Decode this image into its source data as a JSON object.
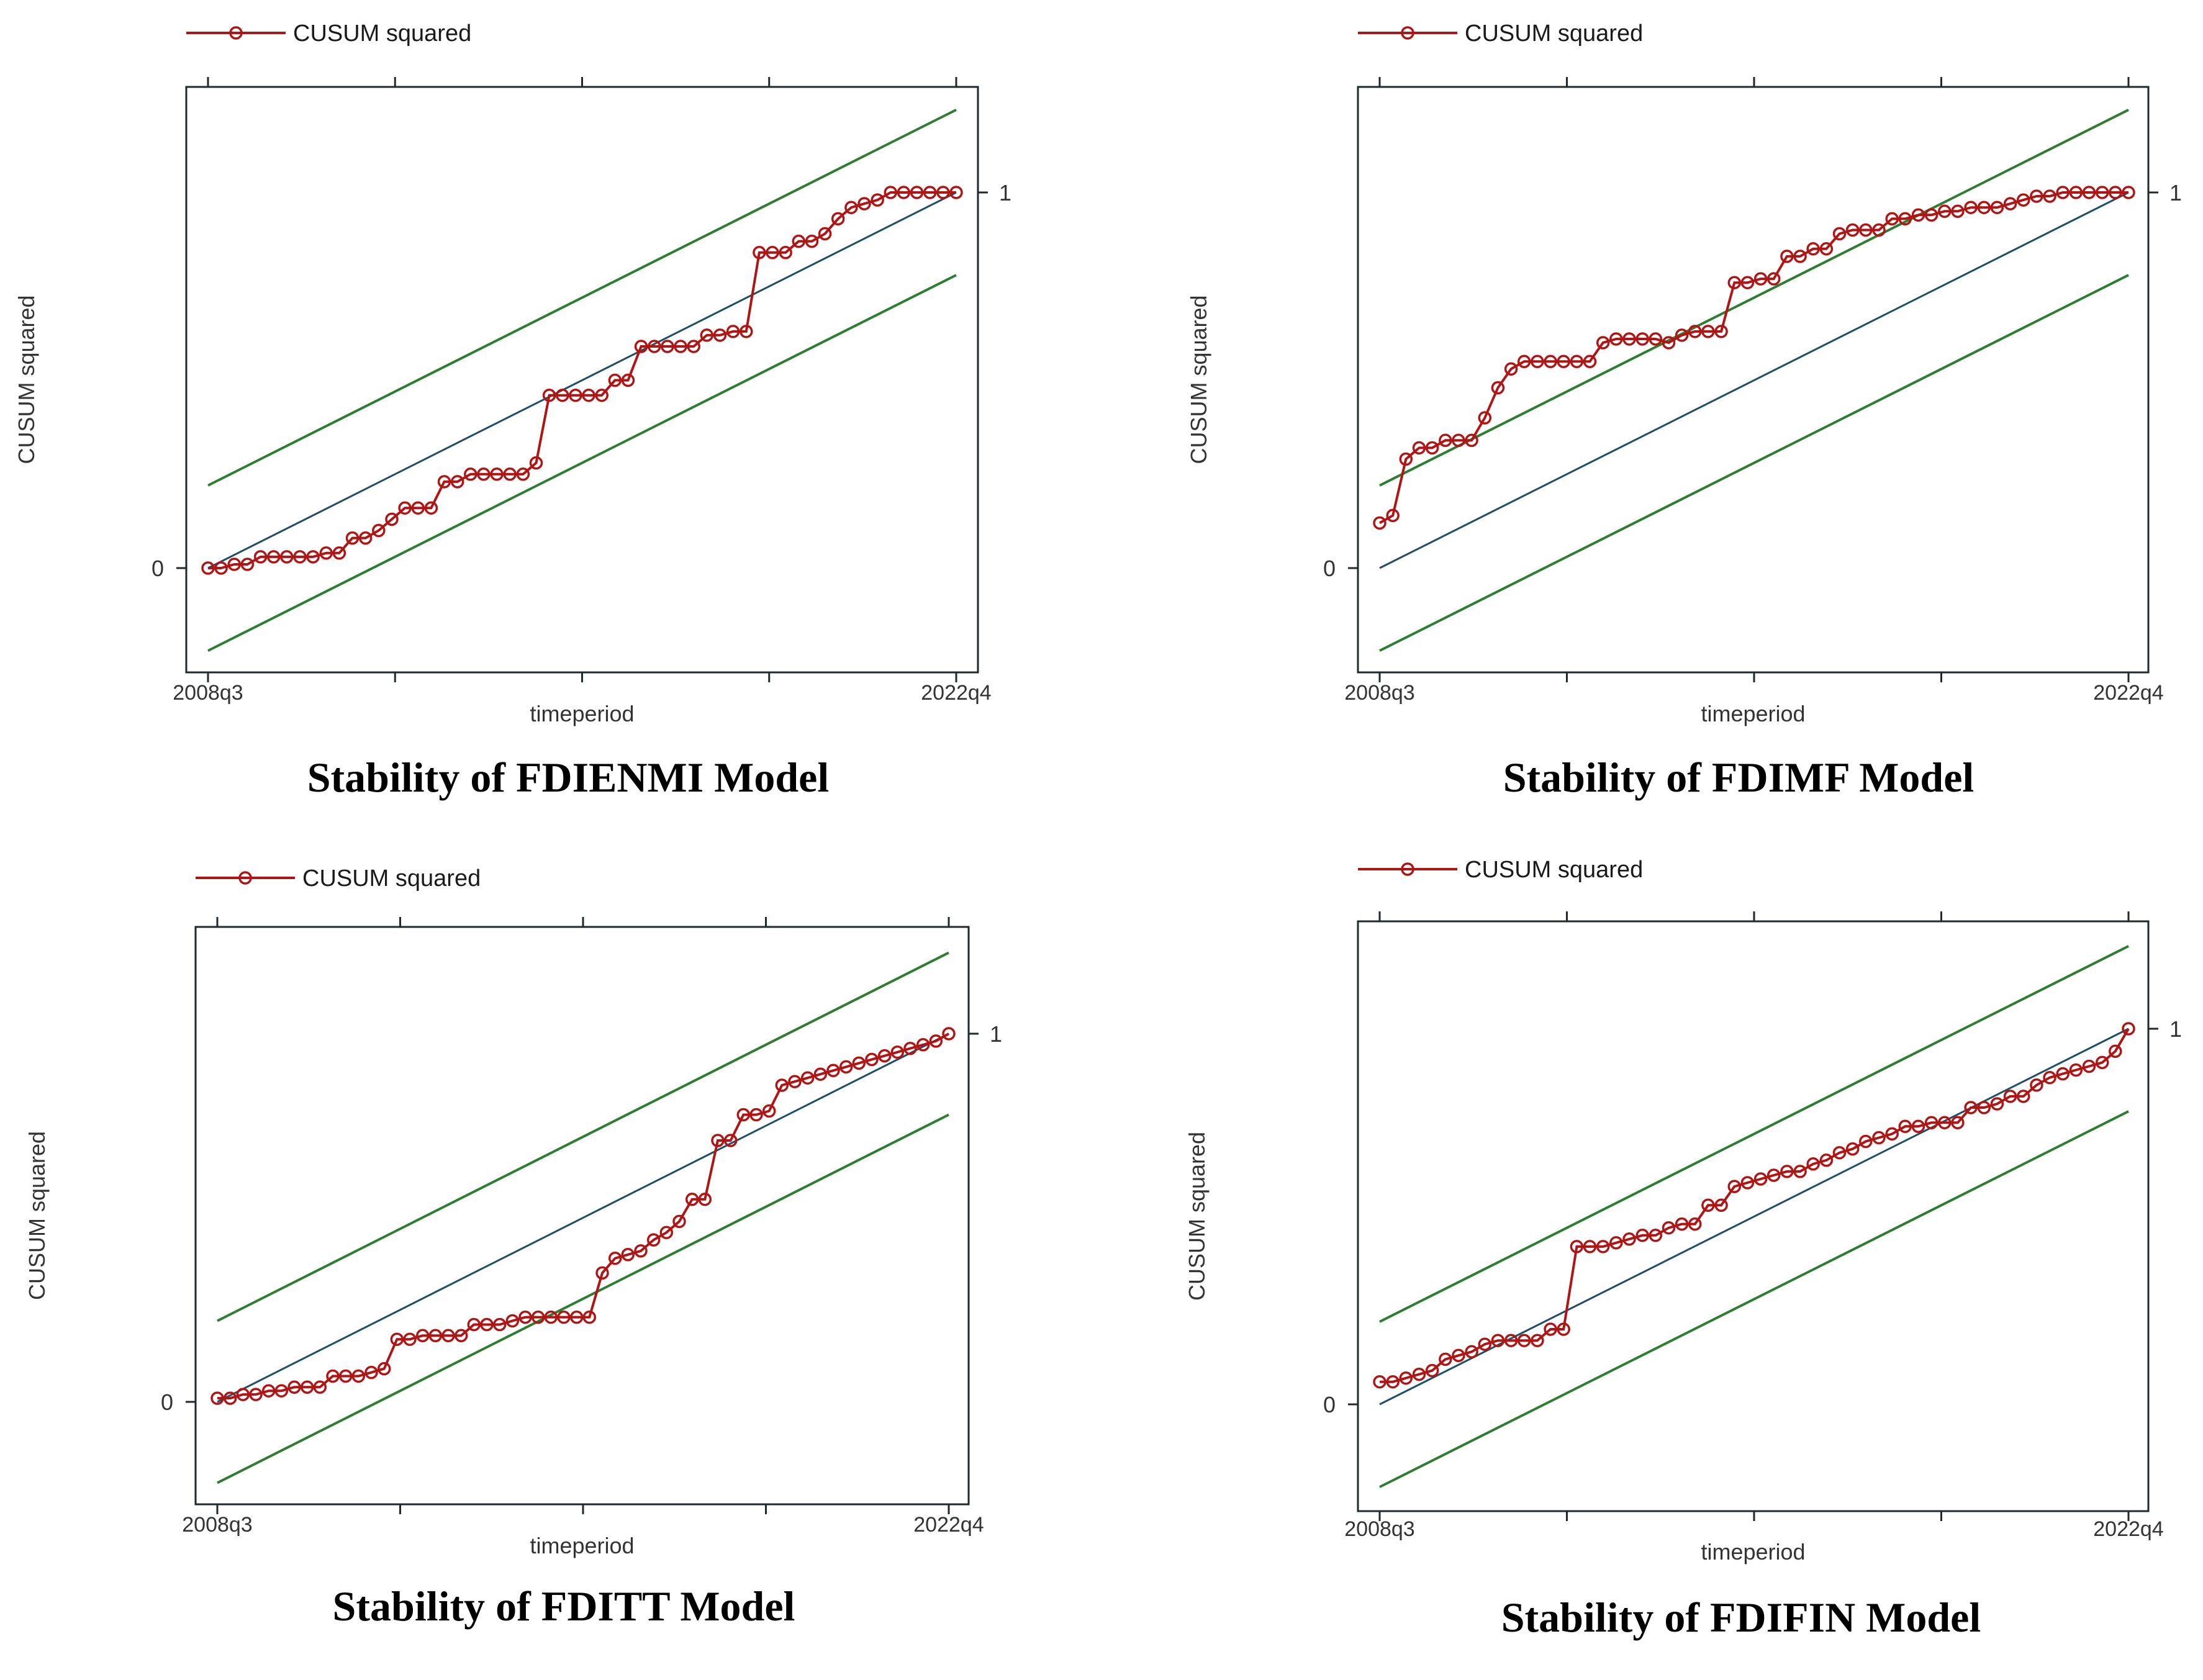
{
  "colors": {
    "cusum": "#b01515",
    "bound": "#2e7d32",
    "reference": "#1f4e66",
    "frame": "#1e2a2e"
  },
  "chart_data": [
    {
      "type": "line",
      "caption": "Stability of FDIENMI Model",
      "legend": "CUSUM squared",
      "xlabel": "timeperiod",
      "ylabel": "CUSUM squared",
      "x_tick_labels": [
        "2008q3",
        "2022q4"
      ],
      "y_tick_labels": [
        "0",
        "1"
      ],
      "x_range": [
        "2008q3",
        "2022q4"
      ],
      "n_points": 58,
      "bound_offset": 0.22,
      "series": [
        {
          "name": "CUSUM squared",
          "values": [
            0.0,
            0.0,
            0.01,
            0.01,
            0.03,
            0.03,
            0.03,
            0.03,
            0.03,
            0.04,
            0.04,
            0.08,
            0.08,
            0.1,
            0.13,
            0.16,
            0.16,
            0.16,
            0.23,
            0.23,
            0.25,
            0.25,
            0.25,
            0.25,
            0.25,
            0.28,
            0.46,
            0.46,
            0.46,
            0.46,
            0.46,
            0.5,
            0.5,
            0.59,
            0.59,
            0.59,
            0.59,
            0.59,
            0.62,
            0.62,
            0.63,
            0.63,
            0.84,
            0.84,
            0.84,
            0.87,
            0.87,
            0.89,
            0.93,
            0.96,
            0.97,
            0.98,
            1.0,
            1.0,
            1.0,
            1.0,
            1.0,
            1.0
          ]
        }
      ]
    },
    {
      "type": "line",
      "caption": "Stability of FDIMF Model",
      "legend": "CUSUM squared",
      "xlabel": "timeperiod",
      "ylabel": "CUSUM squared",
      "x_tick_labels": [
        "2008q3",
        "2022q4"
      ],
      "y_tick_labels": [
        "0",
        "1"
      ],
      "x_range": [
        "2008q3",
        "2022q4"
      ],
      "n_points": 58,
      "bound_offset": 0.22,
      "series": [
        {
          "name": "CUSUM squared",
          "values": [
            0.12,
            0.14,
            0.29,
            0.32,
            0.32,
            0.34,
            0.34,
            0.34,
            0.4,
            0.48,
            0.53,
            0.55,
            0.55,
            0.55,
            0.55,
            0.55,
            0.55,
            0.6,
            0.61,
            0.61,
            0.61,
            0.61,
            0.6,
            0.62,
            0.63,
            0.63,
            0.63,
            0.76,
            0.76,
            0.77,
            0.77,
            0.83,
            0.83,
            0.85,
            0.85,
            0.89,
            0.9,
            0.9,
            0.9,
            0.93,
            0.93,
            0.94,
            0.94,
            0.95,
            0.95,
            0.96,
            0.96,
            0.96,
            0.97,
            0.98,
            0.99,
            0.99,
            1.0,
            1.0,
            1.0,
            1.0,
            1.0,
            1.0
          ]
        }
      ]
    },
    {
      "type": "line",
      "caption": "Stability of FDITT Model",
      "legend": "CUSUM squared",
      "xlabel": "timeperiod",
      "ylabel": "CUSUM squared",
      "x_tick_labels": [
        "2008q3",
        "2022q4"
      ],
      "y_tick_labels": [
        "0",
        "1"
      ],
      "x_range": [
        "2008q3",
        "2022q4"
      ],
      "n_points": 58,
      "bound_offset": 0.22,
      "series": [
        {
          "name": "CUSUM squared",
          "values": [
            0.01,
            0.01,
            0.02,
            0.02,
            0.03,
            0.03,
            0.04,
            0.04,
            0.04,
            0.07,
            0.07,
            0.07,
            0.08,
            0.09,
            0.17,
            0.17,
            0.18,
            0.18,
            0.18,
            0.18,
            0.21,
            0.21,
            0.21,
            0.22,
            0.23,
            0.23,
            0.23,
            0.23,
            0.23,
            0.23,
            0.35,
            0.39,
            0.4,
            0.41,
            0.44,
            0.46,
            0.49,
            0.55,
            0.55,
            0.71,
            0.71,
            0.78,
            0.78,
            0.79,
            0.86,
            0.87,
            0.88,
            0.89,
            0.9,
            0.91,
            0.92,
            0.93,
            0.94,
            0.95,
            0.96,
            0.97,
            0.98,
            1.0
          ]
        }
      ]
    },
    {
      "type": "line",
      "caption": "Stability of FDIFIN Model",
      "legend": "CUSUM squared",
      "xlabel": "timeperiod",
      "ylabel": "CUSUM squared",
      "x_tick_labels": [
        "2008q3",
        "2022q4"
      ],
      "y_tick_labels": [
        "0",
        "1"
      ],
      "x_range": [
        "2008q3",
        "2022q4"
      ],
      "n_points": 58,
      "bound_offset": 0.22,
      "series": [
        {
          "name": "CUSUM squared",
          "values": [
            0.06,
            0.06,
            0.07,
            0.08,
            0.09,
            0.12,
            0.13,
            0.14,
            0.16,
            0.17,
            0.17,
            0.17,
            0.17,
            0.2,
            0.2,
            0.42,
            0.42,
            0.42,
            0.43,
            0.44,
            0.45,
            0.45,
            0.47,
            0.48,
            0.48,
            0.53,
            0.53,
            0.58,
            0.59,
            0.6,
            0.61,
            0.62,
            0.62,
            0.64,
            0.65,
            0.67,
            0.68,
            0.7,
            0.71,
            0.72,
            0.74,
            0.74,
            0.75,
            0.75,
            0.75,
            0.79,
            0.79,
            0.8,
            0.82,
            0.82,
            0.85,
            0.87,
            0.88,
            0.89,
            0.9,
            0.91,
            0.94,
            1.0
          ]
        }
      ]
    }
  ]
}
